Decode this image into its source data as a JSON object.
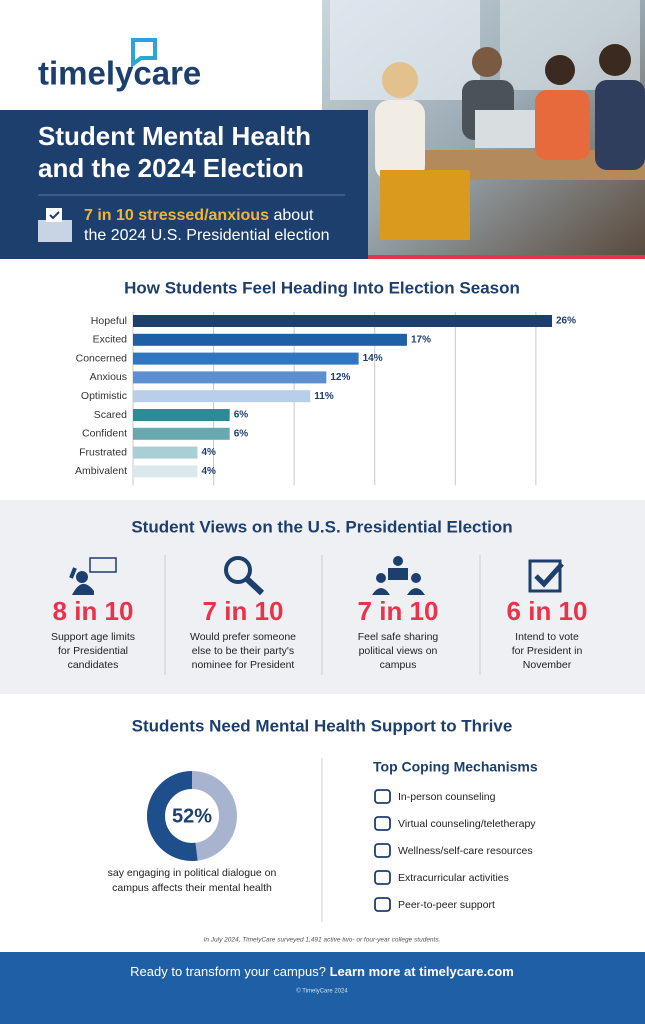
{
  "header": {
    "logo": "timelycare",
    "title_lines": [
      "Student Mental Health",
      "and the 2024 Election"
    ],
    "stat_highlight": "7 in 10 stressed/anxious",
    "stat_text_1": "about",
    "stat_text_2": "the 2024 U.S. Presidential election"
  },
  "chart_data": [
    {
      "type": "hbar",
      "title": "How Students Feel Heading Into Election Season",
      "categories": [
        "Hopeful",
        "Excited",
        "Concerned",
        "Anxious",
        "Optimistic",
        "Scared",
        "Confident",
        "Frustrated",
        "Ambivalent"
      ],
      "values": [
        26,
        17,
        14,
        12,
        11,
        6,
        6,
        4,
        4
      ],
      "value_labels": [
        "26%",
        "17%",
        "14%",
        "12%",
        "11%",
        "6%",
        "6%",
        "4%",
        "4%"
      ],
      "colors": [
        "#1d3f6e",
        "#1f5fa5",
        "#2f75c0",
        "#5b8fcf",
        "#b9cfe9",
        "#2e8b95",
        "#6aa8b0",
        "#a9cfd4",
        "#dbe9ec"
      ],
      "xlim": [
        0,
        26
      ],
      "xticks": [
        0,
        5,
        10,
        15,
        20,
        25
      ],
      "grid": true
    },
    {
      "type": "donut",
      "values": [
        52
      ],
      "value_labels": [
        "52%"
      ],
      "colors": [
        "#1f4e8c",
        "#a7b3cf"
      ],
      "caption": [
        "say engaging in political dialogue on",
        "campus affects their mental health"
      ]
    }
  ],
  "views": {
    "title": "Student Views on the U.S. Presidential Election",
    "items": [
      {
        "stat": "8 in 10",
        "lines": [
          "Support age limits",
          "for Presidential",
          "candidates"
        ]
      },
      {
        "stat": "7 in 10",
        "lines": [
          "Would prefer someone",
          "else to be their party's",
          "nominee for President"
        ]
      },
      {
        "stat": "7 in 10",
        "lines": [
          "Feel safe sharing",
          "political views on",
          "campus"
        ]
      },
      {
        "stat": "6 in 10",
        "lines": [
          "Intend to vote",
          "for President in",
          "November"
        ]
      }
    ]
  },
  "support": {
    "title": "Students Need Mental Health Support to Thrive",
    "coping_title": "Top Coping Mechanisms",
    "coping": [
      "In-person counseling",
      "Virtual counseling/teletherapy",
      "Wellness/self-care resources",
      "Extracurricular activities",
      "Peer-to-peer support"
    ]
  },
  "footnote": "In July 2024, TimelyCare surveyed 1,491 active two- or four-year college students.",
  "footer": {
    "cta": "Ready to transform your campus?",
    "link": "Learn more at timelycare.com",
    "copyright": "© TimelyCare 2024"
  }
}
